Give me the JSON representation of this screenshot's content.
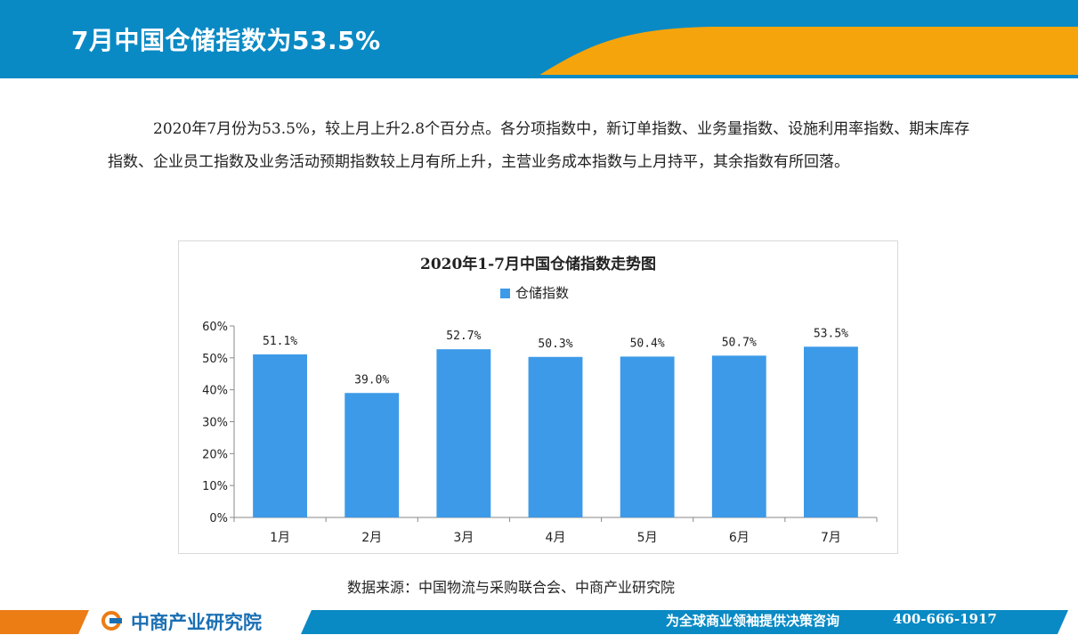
{
  "header": {
    "title": "7月中国仓储指数为53.5%"
  },
  "body": {
    "paragraph": "2020年7月份为53.5%，较上月上升2.8个百分点。各分项指数中，新订单指数、业务量指数、设施利用率指数、期末库存指数、企业员工指数及业务活动预期指数较上月有所上升，主营业务成本指数与上月持平，其余指数有所回落。"
  },
  "chart_data": {
    "type": "bar",
    "title": "2020年1-7月中国仓储指数走势图",
    "categories": [
      "1月",
      "2月",
      "3月",
      "4月",
      "5月",
      "6月",
      "7月"
    ],
    "series": [
      {
        "name": "仓储指数",
        "values": [
          51.1,
          39.0,
          52.7,
          50.3,
          50.4,
          50.7,
          53.5
        ],
        "labels": [
          "51.1%",
          "39.0%",
          "52.7%",
          "50.3%",
          "50.4%",
          "50.7%",
          "53.5%"
        ]
      }
    ],
    "ylim": [
      0,
      60
    ],
    "yticks": [
      "0%",
      "10%",
      "20%",
      "30%",
      "40%",
      "50%",
      "60%"
    ],
    "xlabel": "",
    "ylabel": "",
    "legend": "top-center",
    "grid": false,
    "colors": {
      "bar": "#3d9ae8"
    }
  },
  "source": {
    "text": "数据来源：中国物流与采购联合会、中商产业研究院"
  },
  "footer": {
    "logo": "中商产业研究院",
    "slogan": "为全球商业领袖提供决策咨询",
    "phone": "400-666-1917"
  },
  "colors": {
    "header_blue": "#0a8ac4",
    "header_orange": "#f5a40c",
    "footer_blue": "#0a8ac4",
    "footer_orange": "#ec7c14"
  }
}
